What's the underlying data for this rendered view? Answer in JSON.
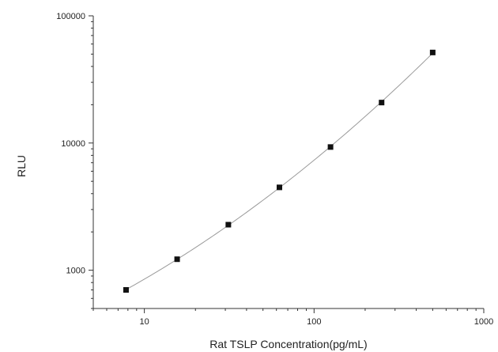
{
  "chart_data": {
    "type": "scatter",
    "title": "",
    "xlabel": "Rat TSLP Concentration(pg/mL)",
    "ylabel": "RLU",
    "x_scale": "log",
    "y_scale": "log",
    "xlim": [
      5,
      1000
    ],
    "ylim": [
      500,
      100000
    ],
    "x_ticks": [
      10,
      100,
      1000
    ],
    "x_tick_labels": [
      "10",
      "100",
      "1000"
    ],
    "y_ticks": [
      1000,
      10000,
      100000
    ],
    "y_tick_labels": [
      "1000",
      "10000",
      "100000"
    ],
    "grid": false,
    "legend": "none",
    "series": [
      {
        "x": [
          7.8,
          15.6,
          31.25,
          62.5,
          125,
          250,
          500
        ],
        "y": [
          700,
          1220,
          2280,
          4480,
          9300,
          20800,
          51500
        ]
      }
    ],
    "fit_curve": true,
    "colors": {
      "points": "#111111",
      "curve": "#9a9a9a",
      "axis": "#333333"
    }
  }
}
